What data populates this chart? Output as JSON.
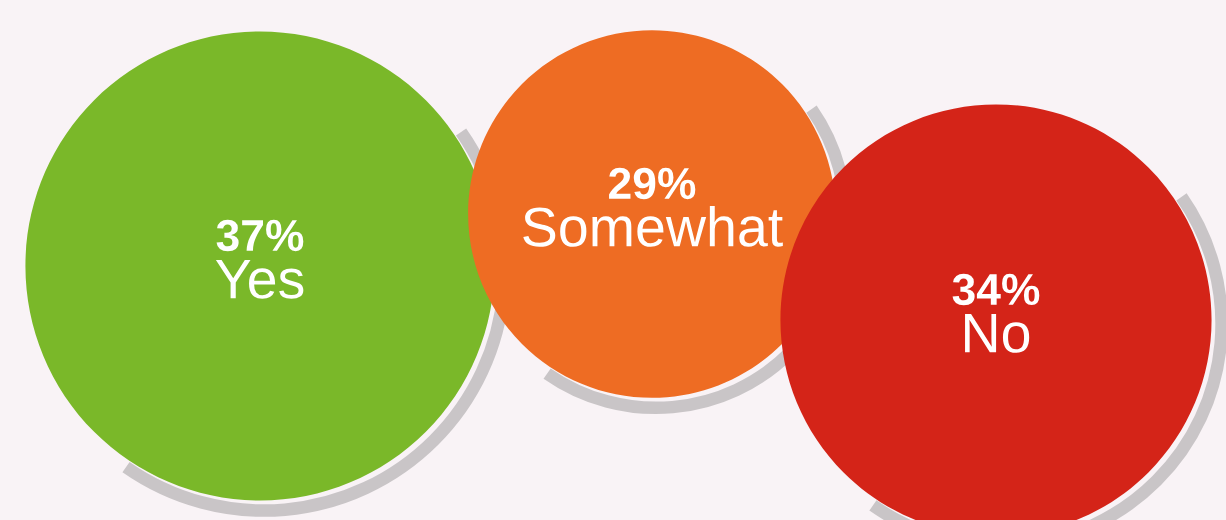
{
  "chart_data": {
    "type": "other",
    "categories": [
      "Yes",
      "Somewhat",
      "No"
    ],
    "values": [
      37,
      29,
      34
    ],
    "value_labels": [
      "37%",
      "29%",
      "34%"
    ],
    "colors": [
      "#7ab829",
      "#ee6c23",
      "#d42418"
    ]
  }
}
